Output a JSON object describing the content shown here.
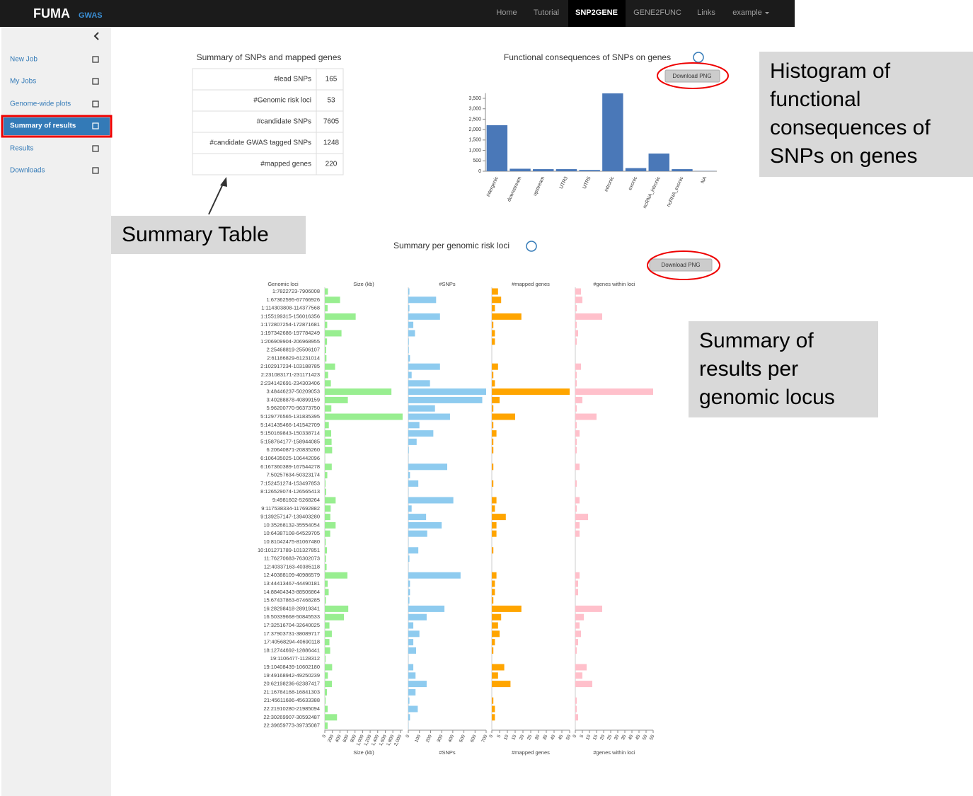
{
  "navbar": {
    "logo": "FUMA",
    "logo_suffix": "GWAS",
    "links": [
      "Home",
      "Tutorial",
      "SNP2GENE",
      "GENE2FUNC",
      "Links"
    ],
    "active": 2,
    "user": "example"
  },
  "sidebar": {
    "items": [
      "New Job",
      "My Jobs",
      "Genome-wide plots",
      "Summary of results",
      "Results",
      "Downloads"
    ],
    "active": 3
  },
  "summary_table": {
    "title": "Summary of SNPs and mapped genes",
    "rows": [
      [
        "#lead SNPs",
        165
      ],
      [
        "#Genomic risk loci",
        53
      ],
      [
        "#candidate SNPs",
        7605
      ],
      [
        "#candidate GWAS tagged SNPs",
        1248
      ],
      [
        "#mapped genes",
        220
      ]
    ]
  },
  "consequences_chart": {
    "type": "bar",
    "title": "Functional consequences of SNPs on genes",
    "button": "Download PNG",
    "categories": [
      "intergenic",
      "downstream",
      "upstream",
      "UTR3",
      "UTR5",
      "intronic",
      "exonic",
      "ncRNA_intronic",
      "ncRNA_exonic",
      "NA"
    ],
    "values": [
      2210,
      120,
      100,
      100,
      60,
      3740,
      150,
      850,
      100,
      10
    ],
    "color": "#4a78b8",
    "ylim": [
      0,
      3750
    ],
    "yticks": [
      0,
      500,
      {
        "value": 1000,
        "label": "1,000"
      },
      {
        "value": 1500,
        "label": "1,500"
      },
      {
        "value": 2000,
        "label": "2,000"
      },
      {
        "value": 2500,
        "label": "2,500"
      },
      {
        "value": 3000,
        "label": "3,000"
      },
      {
        "value": 3500,
        "label": "3,500"
      }
    ]
  },
  "loci_chart": {
    "type": "bar",
    "title": "Summary per genomic risk loci",
    "button": "Download PNG",
    "loci_header": "Genomic loci",
    "loci": [
      "1:7822723-7906008",
      "1:67362595-67766926",
      "1:114303808-114377568",
      "1:155199315-156016356",
      "1:172807254-172871681",
      "1:197342686-197784249",
      "1:206909904-206968955",
      "2:25468819-25506107",
      "2:61186829-61231014",
      "2:102917234-103188785",
      "2:231083171-231171423",
      "2:234142691-234303406",
      "3:48446237-50209053",
      "3:40288878-40899159",
      "5:96200770-96373750",
      "5:129776565-131835395",
      "5:141435466-141542709",
      "5:150169843-150338714",
      "5:158764177-158944085",
      "6:20640871-20835260",
      "6:106435025-106442096",
      "6:167360389-167544278",
      "7:50257634-50323174",
      "7:152451274-153497853",
      "8:126529074-126565413",
      "9:4981602-5268264",
      "9:117538334-117692882",
      "9:139257147-139403280",
      "10:35268132-35554054",
      "10:64387108-64529705",
      "10:81042475-81067480",
      "10:101271789-101327851",
      "11:76270683-76302073",
      "12:40337163-40385118",
      "12:40388109-40986579",
      "13:44413467-44490181",
      "14:88404343-88506864",
      "15:67437863-67468285",
      "16:28298418-28919341",
      "16:50339668-50845533",
      "17:32516704-32640025",
      "17:37903731-38089717",
      "17:40568294-40690118",
      "18:12744692-12886441",
      "19:1106477-1128312",
      "19:10408439-10602180",
      "19:49168942-49250239",
      "20:62198236-62387417",
      "21:16784168-16841303",
      "21:45611686-45633388",
      "22:21910280-21985094",
      "22:30269907-30592487",
      "22:39659773-39735087"
    ],
    "panels": [
      {
        "name": "Size (kb)",
        "color": "#98ee90",
        "xlim": [
          0,
          2060
        ],
        "xticks": [
          0,
          200,
          400,
          600,
          800,
          {
            "value": 1000,
            "label": "1,000"
          },
          {
            "value": 1200,
            "label": "1,200"
          },
          {
            "value": 1400,
            "label": "1,400"
          },
          {
            "value": 1600,
            "label": "1,600"
          },
          {
            "value": 1800,
            "label": "1,800"
          },
          {
            "value": 2000,
            "label": "2,000"
          }
        ],
        "values": [
          83,
          404,
          74,
          817,
          64,
          442,
          59,
          37,
          44,
          272,
          88,
          161,
          1763,
          610,
          173,
          2059,
          107,
          169,
          180,
          194,
          7,
          184,
          66,
          20,
          36,
          287,
          155,
          146,
          286,
          143,
          25,
          56,
          31,
          48,
          598,
          77,
          103,
          30,
          621,
          506,
          123,
          186,
          122,
          142,
          22,
          194,
          81,
          189,
          57,
          22,
          75,
          323,
          75
        ]
      },
      {
        "name": "#SNPs",
        "color": "#8ecbef",
        "xlim": [
          0,
          700
        ],
        "xticks": [
          0,
          100,
          200,
          300,
          400,
          500,
          600,
          700
        ],
        "values": [
          10,
          250,
          10,
          285,
          45,
          60,
          5,
          5,
          15,
          285,
          30,
          195,
          700,
          665,
          240,
          375,
          100,
          225,
          75,
          5,
          2,
          350,
          15,
          90,
          2,
          405,
          30,
          160,
          300,
          170,
          2,
          90,
          10,
          2,
          470,
          15,
          15,
          10,
          325,
          165,
          45,
          100,
          45,
          70,
          2,
          45,
          65,
          165,
          65,
          10,
          85,
          15,
          2
        ]
      },
      {
        "name": "#mapped genes",
        "color": "#ffa500",
        "xlim": [
          0,
          50
        ],
        "xticks": [
          0,
          5,
          10,
          15,
          20,
          25,
          30,
          35,
          40,
          45,
          50
        ],
        "values": [
          4,
          6,
          2,
          19,
          1,
          2,
          2,
          0,
          0,
          4,
          1,
          2,
          50,
          5,
          1,
          15,
          1,
          3,
          1,
          1,
          0,
          1,
          0,
          1,
          0,
          3,
          2,
          9,
          3,
          3,
          0,
          1,
          0,
          0,
          3,
          2,
          2,
          1,
          19,
          6,
          4,
          5,
          2,
          1,
          0,
          8,
          4,
          12,
          0,
          1,
          2,
          2,
          0
        ]
      },
      {
        "name": "#genes within loci",
        "color": "#ffc0cb",
        "xlim": [
          0,
          55
        ],
        "xticks": [
          0,
          5,
          10,
          15,
          20,
          25,
          30,
          35,
          40,
          45,
          50,
          55
        ],
        "values": [
          4,
          5,
          1,
          19,
          1,
          2,
          1,
          0,
          0,
          4,
          1,
          1,
          55,
          5,
          1,
          15,
          1,
          3,
          1,
          1,
          0,
          3,
          0,
          1,
          0,
          3,
          1,
          9,
          3,
          3,
          0,
          0,
          0,
          0,
          3,
          2,
          2,
          0,
          19,
          6,
          3,
          4,
          2,
          1,
          0,
          8,
          5,
          12,
          0,
          1,
          1,
          2,
          0
        ]
      }
    ]
  },
  "annotations": [
    {
      "lines": [
        "Summary Table"
      ]
    },
    {
      "lines": [
        "Histogram of",
        "functional",
        "consequences of",
        "SNPs on genes"
      ]
    },
    {
      "lines": [
        "Summary of",
        "results per",
        "genomic locus"
      ]
    }
  ]
}
